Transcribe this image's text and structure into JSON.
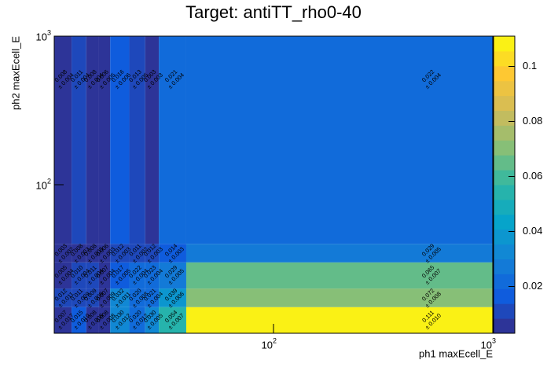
{
  "chart_data": {
    "type": "heatmap",
    "title": "Target: antiTT_rho0-40",
    "x_label": "ph1 maxEcell_E",
    "y_label": "ph2 maxEcell_E",
    "x_edges": [
      10,
      12,
      14,
      16,
      18,
      22,
      26,
      30,
      40,
      1000
    ],
    "y_edges": [
      10,
      15,
      20,
      30,
      40,
      1000
    ],
    "xlim": [
      10,
      1000
    ],
    "ylim": [
      10,
      1000
    ],
    "log_x": true,
    "log_y": true,
    "xticks": [
      {
        "value": 100,
        "label": "10",
        "exponent": "2"
      },
      {
        "value": 1000,
        "label": "10",
        "exponent": "3"
      }
    ],
    "yticks": [
      {
        "value": 100,
        "label": "10",
        "exponent": "2"
      },
      {
        "value": 1000,
        "label": "10",
        "exponent": "3"
      }
    ],
    "values": [
      [
        0.007,
        0.015,
        0.008,
        0.008,
        0.03,
        0.02,
        0.03,
        0.054,
        0.111
      ],
      [
        0.012,
        0.011,
        0.009,
        0.007,
        0.032,
        0.02,
        0.021,
        0.039,
        0.072
      ],
      [
        0.005,
        0.01,
        0.011,
        0.007,
        0.017,
        0.022,
        0.023,
        0.029,
        0.065
      ],
      [
        0.003,
        0.008,
        0.008,
        0.006,
        0.012,
        0.011,
        0.012,
        0.014,
        0.029
      ],
      [
        0.008,
        0.011,
        0.008,
        0.006,
        0.016,
        0.013,
        0.003,
        0.021,
        0.022
      ]
    ],
    "value_labels": [
      [
        "0.007",
        "0.015",
        "0.008",
        "0.008",
        "0.030",
        "0.020",
        "0.030",
        "0.054",
        "0.111"
      ],
      [
        "0.012",
        "0.011",
        "0.009",
        "0.007",
        "0.032",
        "0.020",
        "0.021",
        "0.039",
        "0.072"
      ],
      [
        "0.005",
        "0.010",
        "0.011",
        "0.007",
        "0.017",
        "0.022",
        "0.023",
        "0.029",
        "0.065"
      ],
      [
        "0.003",
        "0.008",
        "0.008",
        "0.006",
        "0.012",
        "0.011",
        "0.012",
        "0.014",
        "0.029"
      ],
      [
        "0.008",
        "0.011",
        "0.008",
        "0.006",
        "0.016",
        "0.013",
        "0.003",
        "0.021",
        "0.022"
      ]
    ],
    "error_labels": [
      [
        "± 0.017",
        "± 0.010",
        "± 0.008",
        "± 0.008",
        "± 0.012",
        "± 0.012",
        "± 0.005",
        "± 0.007",
        "± 0.010"
      ],
      [
        "± 0.011",
        "± 0.009",
        "± 0.009",
        "± 0.009",
        "± 0.011",
        "± 0.008",
        "± 0.004",
        "± 0.006",
        "± 0.008"
      ],
      [
        "± 0.004",
        "± 0.004",
        "± 0.004",
        "± 0.004",
        "± 0.005",
        "± 0.004",
        "± 0.004",
        "± 0.005",
        "± 0.007"
      ],
      [
        "± 0.002",
        "± 0.003",
        "± 0.003",
        "± 0.003",
        "± 0.003",
        "± 0.002",
        "± 0.003",
        "± 0.003",
        "± 0.005"
      ],
      [
        "± 0.004",
        "± 0.004",
        "± 0.004",
        "± 0.005",
        "± 0.006",
        "± 0.005",
        "± 0.003",
        "± 0.004",
        "± 0.004"
      ]
    ],
    "zlim": [
      0.003,
      0.111
    ],
    "zticks": [
      0.02,
      0.04,
      0.06,
      0.08,
      0.1
    ],
    "contours": 20,
    "palette": [
      "#352a87",
      "#0f5cdd",
      "#1481d6",
      "#06a4ca",
      "#2eb7a4",
      "#87bf77",
      "#d1bb59",
      "#fec832",
      "#f9fb0e"
    ]
  }
}
